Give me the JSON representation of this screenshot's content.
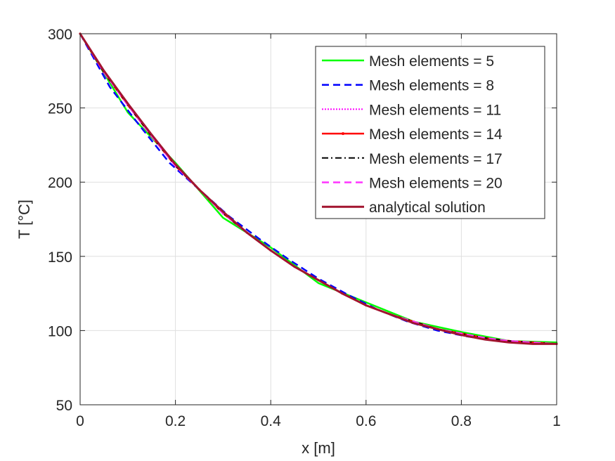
{
  "chart_data": {
    "type": "line",
    "title": "",
    "xlabel": "x [m]",
    "ylabel": "T [°C]",
    "xlim": [
      0,
      1
    ],
    "ylim": [
      50,
      300
    ],
    "xticks": [
      0,
      0.2,
      0.4,
      0.6,
      0.8,
      1
    ],
    "yticks": [
      50,
      100,
      150,
      200,
      250,
      300
    ],
    "xtick_labels": [
      "0",
      "0.2",
      "0.4",
      "0.6",
      "0.8",
      "1"
    ],
    "ytick_labels": [
      "50",
      "100",
      "150",
      "200",
      "250",
      "300"
    ],
    "grid": true,
    "legend_position": "top-right",
    "series": [
      {
        "name": "Mesh elements = 5",
        "color": "#00ff00",
        "dash": "solid",
        "width": 2.5,
        "x": [
          0,
          0.1,
          0.2,
          0.3,
          0.4,
          0.5,
          0.6,
          0.7,
          0.8,
          0.9,
          1.0
        ],
        "y": [
          300,
          247,
          213,
          176,
          156,
          132,
          119,
          106,
          99,
          93,
          92
        ]
      },
      {
        "name": "Mesh elements = 8",
        "color": "#0000ff",
        "dash": "dashed",
        "width": 2.5,
        "x": [
          0,
          0.0625,
          0.125,
          0.1875,
          0.25,
          0.3125,
          0.375,
          0.4375,
          0.5,
          0.5625,
          0.625,
          0.6875,
          0.75,
          0.8125,
          0.875,
          0.9375,
          1.0
        ],
        "y": [
          300,
          264,
          238,
          213,
          195,
          177,
          162,
          148,
          135,
          124,
          114,
          106,
          100,
          96,
          93,
          92,
          91
        ]
      },
      {
        "name": "Mesh elements = 11",
        "color": "#ff00ff",
        "dash": "dotted",
        "width": 2,
        "x": [
          0,
          0.05,
          0.1,
          0.15,
          0.2,
          0.25,
          0.3,
          0.35,
          0.4,
          0.45,
          0.5,
          0.55,
          0.6,
          0.65,
          0.7,
          0.75,
          0.8,
          0.85,
          0.9,
          0.95,
          1.0
        ],
        "y": [
          300,
          274,
          252,
          231,
          211,
          195,
          179,
          166,
          154,
          143,
          134,
          125,
          117,
          111,
          106,
          101,
          98,
          95,
          93,
          92,
          91
        ]
      },
      {
        "name": "Mesh elements = 14",
        "color": "#ff0000",
        "dash": "solid",
        "width": 2.5,
        "marker": true,
        "x": [
          0,
          0.05,
          0.1,
          0.15,
          0.2,
          0.25,
          0.3,
          0.35,
          0.4,
          0.45,
          0.5,
          0.55,
          0.6,
          0.65,
          0.7,
          0.75,
          0.8,
          0.85,
          0.9,
          0.95,
          1.0
        ],
        "y": [
          300,
          274,
          252,
          231,
          211,
          195,
          179,
          166,
          154,
          143,
          134,
          125,
          117,
          111,
          106,
          101,
          98,
          95,
          93,
          92,
          91
        ]
      },
      {
        "name": "Mesh elements = 17",
        "color": "#000000",
        "dash": "dashdot",
        "width": 2,
        "x": [
          0,
          0.05,
          0.1,
          0.15,
          0.2,
          0.25,
          0.3,
          0.35,
          0.4,
          0.45,
          0.5,
          0.55,
          0.6,
          0.65,
          0.7,
          0.75,
          0.8,
          0.85,
          0.9,
          0.95,
          1.0
        ],
        "y": [
          300,
          274,
          252,
          231,
          211,
          195,
          179,
          166,
          154,
          143,
          134,
          125,
          117,
          111,
          106,
          101,
          98,
          95,
          93,
          92,
          91
        ]
      },
      {
        "name": "Mesh elements = 20",
        "color": "#ff33ff",
        "dash": "dashed",
        "width": 2.5,
        "x": [
          0,
          0.05,
          0.1,
          0.15,
          0.2,
          0.25,
          0.3,
          0.35,
          0.4,
          0.45,
          0.5,
          0.55,
          0.6,
          0.65,
          0.7,
          0.75,
          0.8,
          0.85,
          0.9,
          0.95,
          1.0
        ],
        "y": [
          300,
          274,
          252,
          231,
          211,
          195,
          179,
          166,
          154,
          143,
          134,
          125,
          117,
          111,
          106,
          101,
          98,
          95,
          93,
          92,
          91
        ]
      },
      {
        "name": "analytical solution",
        "color": "#a2142f",
        "dash": "solid",
        "width": 3,
        "x": [
          0,
          0.05,
          0.1,
          0.15,
          0.2,
          0.25,
          0.3,
          0.35,
          0.4,
          0.45,
          0.5,
          0.55,
          0.6,
          0.65,
          0.7,
          0.75,
          0.8,
          0.85,
          0.9,
          0.95,
          1.0
        ],
        "y": [
          300,
          275,
          253,
          232,
          212,
          195,
          180,
          166,
          154,
          143,
          134,
          125,
          117,
          111,
          105,
          101,
          97,
          94,
          92,
          91,
          91
        ]
      }
    ]
  }
}
